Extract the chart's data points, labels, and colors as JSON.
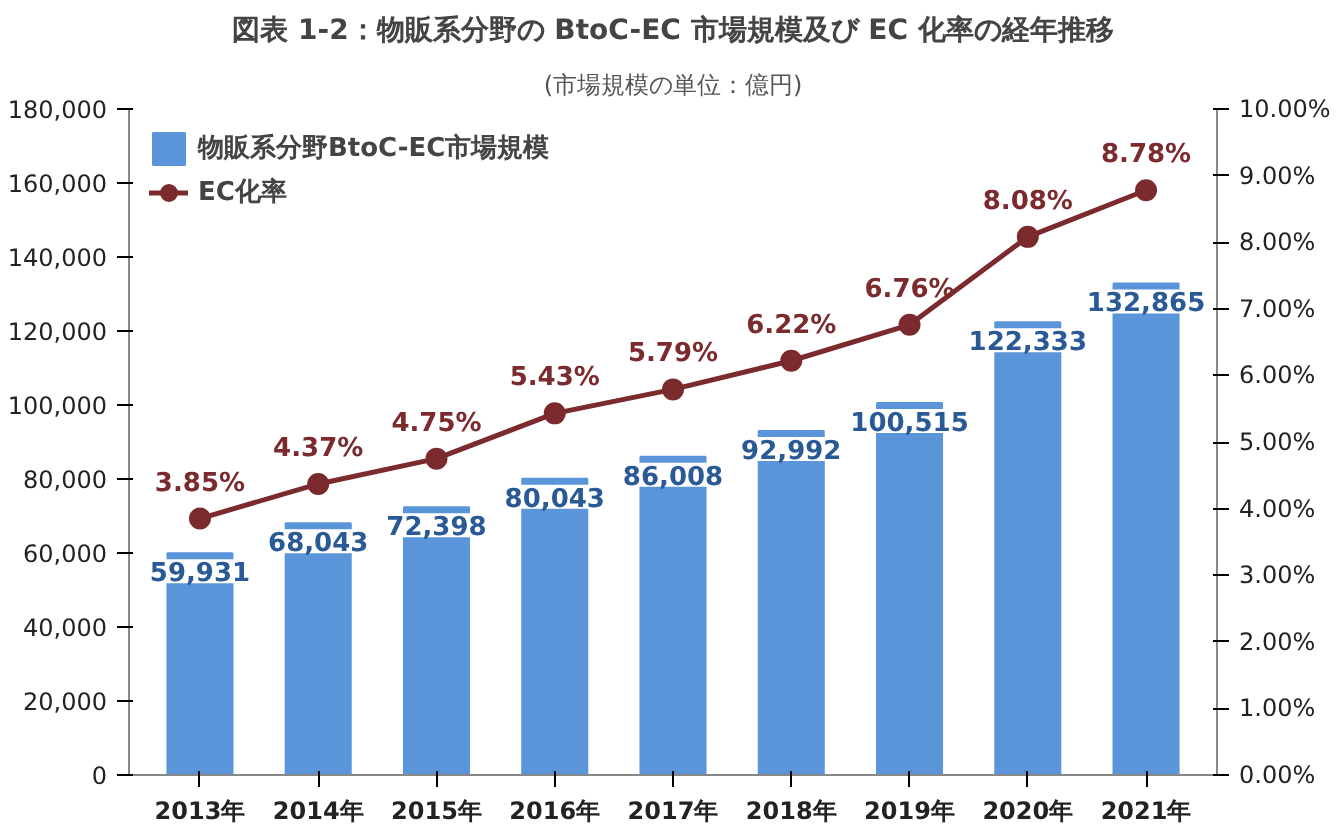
{
  "chart_data": {
    "type": "bar",
    "title": "図表 1-2：物販系分野の BtoC-EC 市場規模及び EC 化率の経年推移",
    "subtitle": "(市場規模の単位：億円)",
    "categories": [
      "2013年",
      "2014年",
      "2015年",
      "2016年",
      "2017年",
      "2018年",
      "2019年",
      "2020年",
      "2021年"
    ],
    "series": [
      {
        "name": "物販系分野BtoC-EC市場規模",
        "color": "#5b95d9",
        "values": [
          59931,
          68043,
          72398,
          80043,
          86008,
          92992,
          100515,
          122333,
          132865
        ],
        "value_labels": [
          "59,931",
          "68,043",
          "72,398",
          "80,043",
          "86,008",
          "92,992",
          "100,515",
          "122,333",
          "132,865"
        ]
      },
      {
        "name": "EC化率",
        "type": "line",
        "axis": "y2",
        "color": "#7b2a2e",
        "values": [
          3.85,
          4.37,
          4.75,
          5.43,
          5.79,
          6.22,
          6.76,
          8.08,
          8.78
        ],
        "value_labels": [
          "3.85%",
          "4.37%",
          "4.75%",
          "5.43%",
          "5.79%",
          "6.22%",
          "6.76%",
          "8.08%",
          "8.78%"
        ]
      }
    ],
    "ylim": [
      0,
      180000
    ],
    "yticks": [
      0,
      {
        "value": 20000,
        "label": "20,000"
      },
      {
        "value": 40000,
        "label": "40,000"
      },
      {
        "value": 60000,
        "label": "60,000"
      },
      {
        "value": 80000,
        "label": "80,000"
      },
      {
        "value": 100000,
        "label": "100,000"
      },
      {
        "value": 120000,
        "label": "120,000"
      },
      {
        "value": 140000,
        "label": "140,000"
      },
      {
        "value": 160000,
        "label": "160,000"
      },
      {
        "value": 180000,
        "label": "180,000"
      }
    ],
    "y2lim": [
      0,
      10
    ],
    "y2ticks": [
      {
        "value": 0,
        "label": "0.00%"
      },
      {
        "value": 1,
        "label": "1.00%"
      },
      {
        "value": 2,
        "label": "2.00%"
      },
      {
        "value": 3,
        "label": "3.00%"
      },
      {
        "value": 4,
        "label": "4.00%"
      },
      {
        "value": 5,
        "label": "5.00%"
      },
      {
        "value": 6,
        "label": "6.00%"
      },
      {
        "value": 7,
        "label": "7.00%"
      },
      {
        "value": 8,
        "label": "8.00%"
      },
      {
        "value": 9,
        "label": "9.00%"
      },
      {
        "value": 10,
        "label": "10.00%"
      }
    ],
    "marker": "circle",
    "line_style": "solid",
    "legend": "top left",
    "grid": false
  }
}
